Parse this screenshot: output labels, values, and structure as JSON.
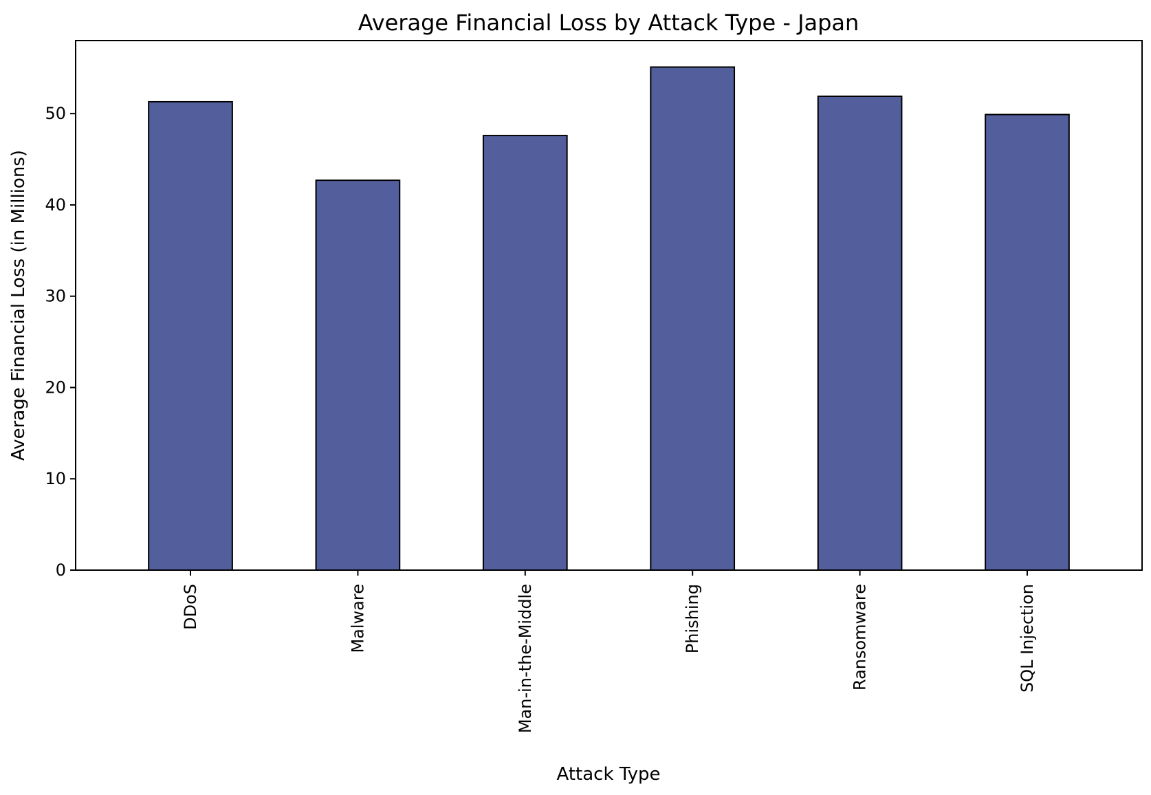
{
  "chart_data": {
    "type": "bar",
    "title": "Average Financial Loss by Attack Type - Japan",
    "xlabel": "Attack Type",
    "ylabel": "Average Financial Loss (in Millions)",
    "categories": [
      "DDoS",
      "Malware",
      "Man-in-the-Middle",
      "Phishing",
      "Ransomware",
      "SQL Injection"
    ],
    "values": [
      51.3,
      42.7,
      47.6,
      55.1,
      51.9,
      49.9
    ],
    "ylim": [
      0,
      58
    ],
    "yticks": [
      0,
      10,
      20,
      30,
      40,
      50
    ],
    "grid": false,
    "legend": "none",
    "colors": {
      "bar_fill": "#525f9c",
      "bar_edge": "#000000",
      "axes": "#000000",
      "background": "#ffffff"
    }
  }
}
